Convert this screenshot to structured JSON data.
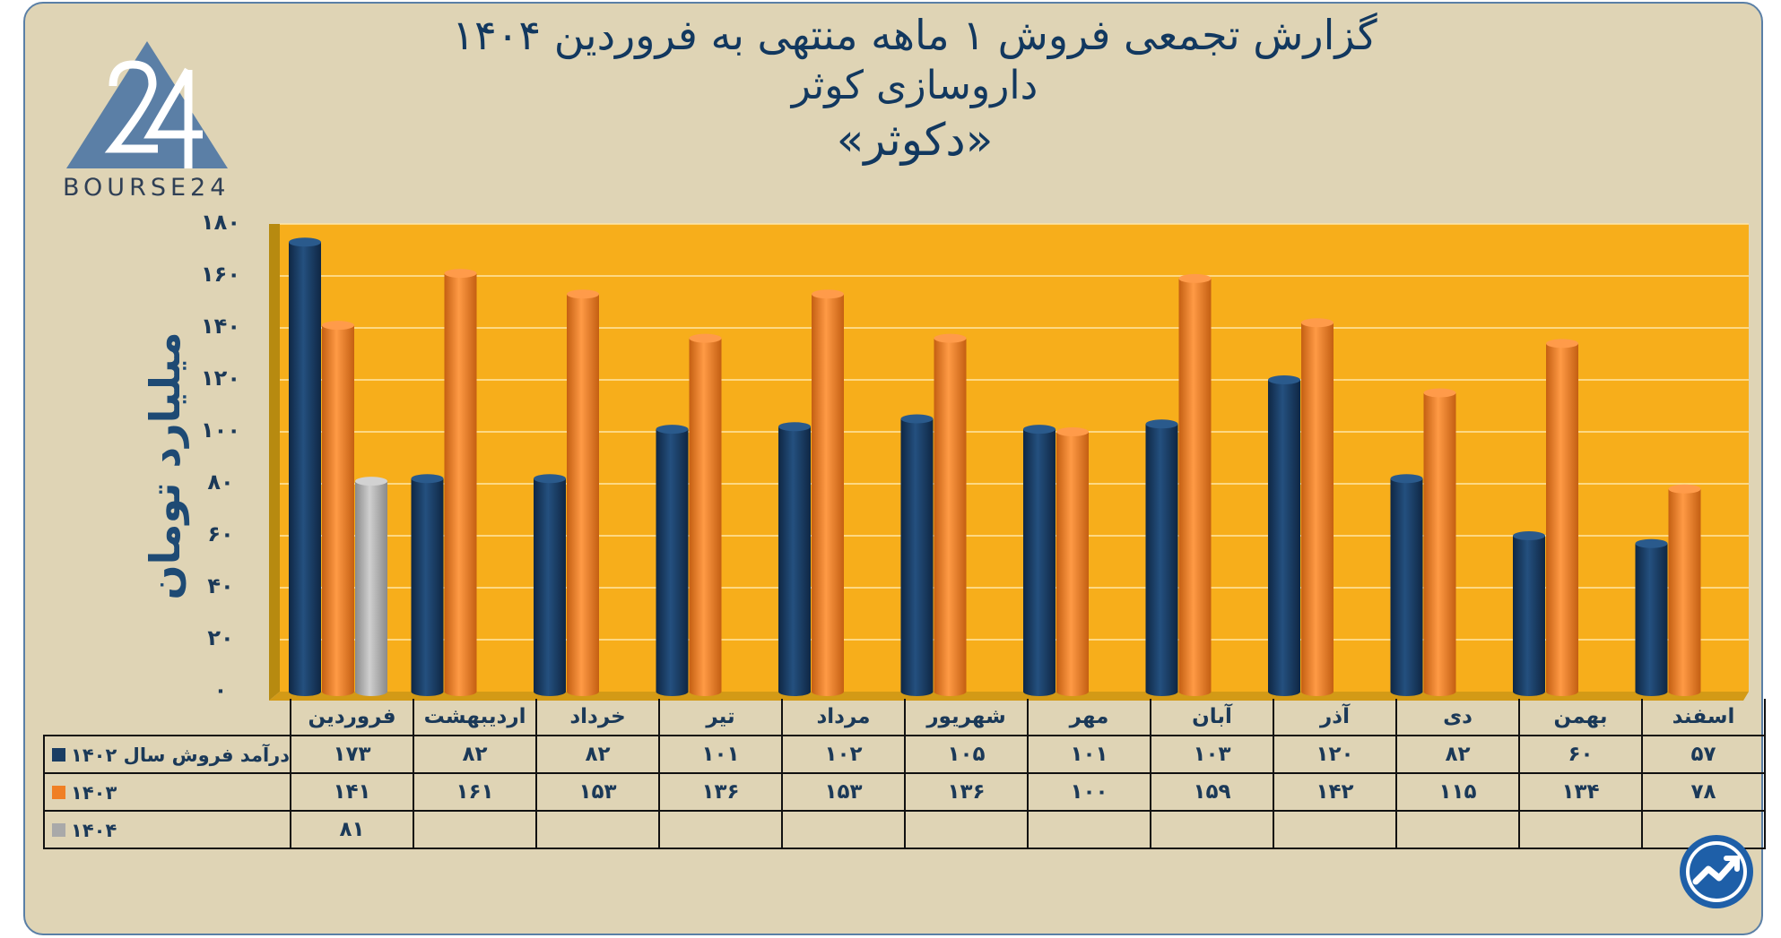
{
  "title": {
    "line1": "گزارش تجمعی فروش ۱ ماهه منتهی به فروردین ۱۴۰۴",
    "line2": "داروسازی کوثر",
    "line3": "«دکوثر»"
  },
  "logo": {
    "text": "BOURSE24",
    "icon": "bourse24-triangle-logo"
  },
  "brand_icon": "trend-arrow-circle-icon",
  "colors": {
    "s1402": "#1a3d63",
    "s1403": "#f07f24",
    "s1404": "#a9a9a9",
    "background": "#dfd4b5",
    "plot": "#f7ae1b"
  },
  "chart_data": {
    "type": "bar",
    "title": "گزارش تجمعی فروش ۱ ماهه منتهی به فروردین ۱۴۰۴",
    "ylabel": "میلیارد تومان",
    "ylim": [
      0,
      180
    ],
    "yticks": [
      "۰",
      "۲۰",
      "۴۰",
      "۶۰",
      "۸۰",
      "۱۰۰",
      "۱۲۰",
      "۱۴۰",
      "۱۶۰",
      "۱۸۰"
    ],
    "grid": true,
    "categories": [
      "فروردین",
      "اردیبهشت",
      "خرداد",
      "تیر",
      "مرداد",
      "شهریور",
      "مهر",
      "آبان",
      "آذر",
      "دی",
      "بهمن",
      "اسفند"
    ],
    "series": [
      {
        "name": "درآمد فروش سال ۱۴۰۲",
        "values": [
          173,
          82,
          82,
          101,
          102,
          105,
          101,
          103,
          120,
          82,
          60,
          57
        ],
        "labels": [
          "۱۷۳",
          "۸۲",
          "۸۲",
          "۱۰۱",
          "۱۰۲",
          "۱۰۵",
          "۱۰۱",
          "۱۰۳",
          "۱۲۰",
          "۸۲",
          "۶۰",
          "۵۷"
        ]
      },
      {
        "name": "۱۴۰۳",
        "values": [
          141,
          161,
          153,
          136,
          153,
          136,
          100,
          159,
          142,
          115,
          134,
          78
        ],
        "labels": [
          "۱۴۱",
          "۱۶۱",
          "۱۵۳",
          "۱۳۶",
          "۱۵۳",
          "۱۳۶",
          "۱۰۰",
          "۱۵۹",
          "۱۴۲",
          "۱۱۵",
          "۱۳۴",
          "۷۸"
        ]
      },
      {
        "name": "۱۴۰۴",
        "values": [
          81,
          null,
          null,
          null,
          null,
          null,
          null,
          null,
          null,
          null,
          null,
          null
        ],
        "labels": [
          "۸۱",
          "",
          "",
          "",
          "",
          "",
          "",
          "",
          "",
          "",
          "",
          ""
        ]
      }
    ]
  }
}
